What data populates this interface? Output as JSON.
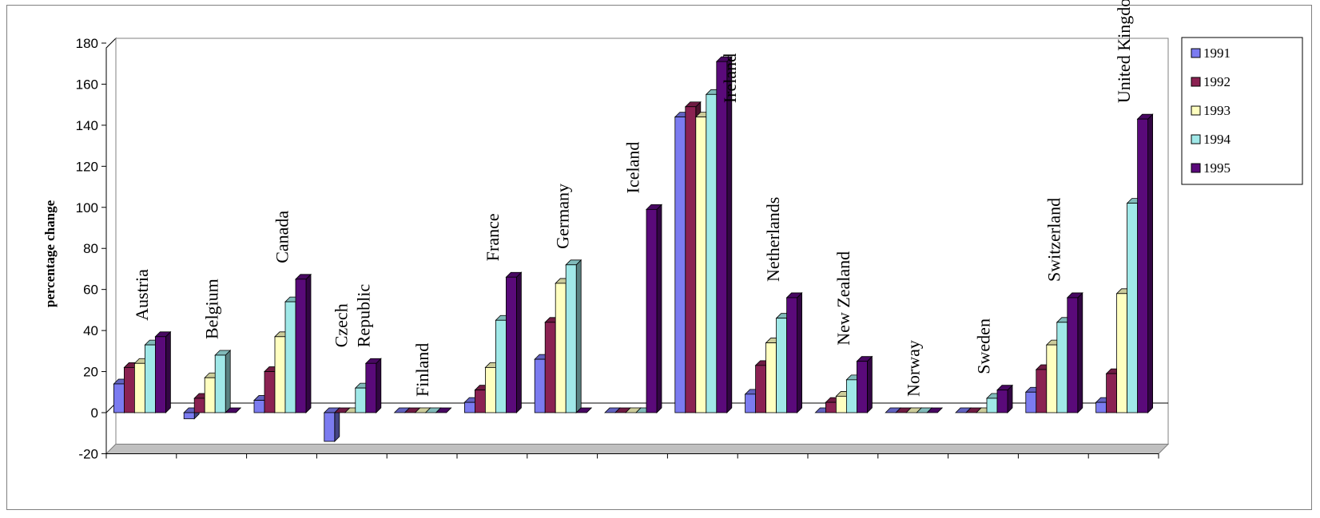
{
  "chart_data": {
    "type": "bar",
    "subtype": "3d-clustered-column",
    "title": "",
    "xlabel": "",
    "ylabel": "percentage change",
    "ylim": [
      -20,
      180
    ],
    "yticks": [
      -20,
      0,
      20,
      40,
      60,
      80,
      100,
      120,
      140,
      160,
      180
    ],
    "grid": false,
    "legend_position": "right",
    "categories": [
      {
        "lines": [
          "Austria"
        ]
      },
      {
        "lines": [
          "Belgium"
        ]
      },
      {
        "lines": [
          "Canada"
        ]
      },
      {
        "lines": [
          "Czech",
          "Republic"
        ]
      },
      {
        "lines": [
          "Finland"
        ]
      },
      {
        "lines": [
          "France"
        ]
      },
      {
        "lines": [
          "Germany"
        ]
      },
      {
        "lines": [
          "Iceland"
        ]
      },
      {
        "lines": [
          "Ireland"
        ]
      },
      {
        "lines": [
          "Netherlands"
        ]
      },
      {
        "lines": [
          "New Zealand"
        ]
      },
      {
        "lines": [
          "Norway"
        ]
      },
      {
        "lines": [
          "Sweden"
        ]
      },
      {
        "lines": [
          "Switzerland"
        ]
      },
      {
        "lines": [
          "United Kingdom"
        ]
      }
    ],
    "series": [
      {
        "name": "1991",
        "color": "#7b7bf0",
        "values": [
          14,
          -3,
          6,
          -14,
          0,
          5,
          26,
          0,
          144,
          9,
          0,
          0,
          0,
          10,
          5
        ]
      },
      {
        "name": "1992",
        "color": "#8b2252",
        "values": [
          22,
          7,
          20,
          0,
          0,
          11,
          44,
          0,
          149,
          23,
          5,
          0,
          0,
          21,
          19
        ]
      },
      {
        "name": "1993",
        "color": "#ffffc0",
        "values": [
          24,
          17,
          37,
          0,
          0,
          22,
          63,
          0,
          144,
          34,
          8,
          0,
          0,
          33,
          58
        ]
      },
      {
        "name": "1994",
        "color": "#a0e8e8",
        "values": [
          33,
          28,
          54,
          12,
          0,
          45,
          72,
          0,
          155,
          46,
          16,
          0,
          7,
          44,
          102
        ]
      },
      {
        "name": "1995",
        "color": "#5a0a7a",
        "values": [
          37,
          0,
          65,
          24,
          0,
          66,
          0,
          99,
          171,
          56,
          25,
          0,
          11,
          56,
          143
        ]
      }
    ]
  }
}
